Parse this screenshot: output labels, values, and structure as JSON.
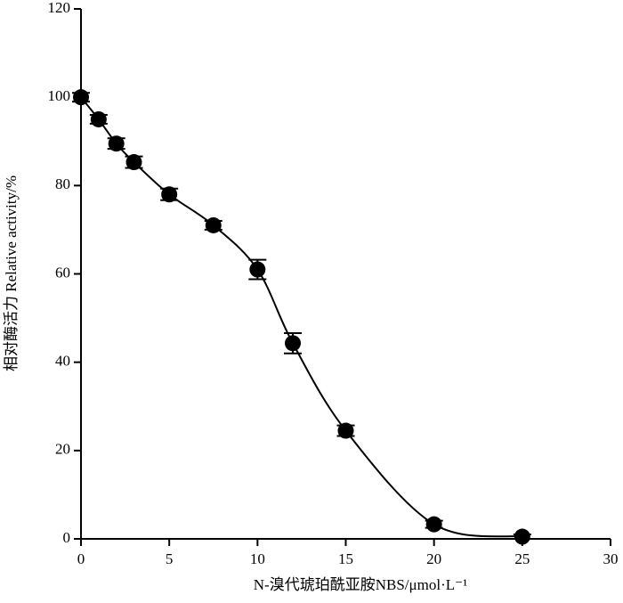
{
  "chart_data": {
    "type": "line",
    "x_label": "N-溴代琥珀酰亚胺NBS/μmol·L⁻¹",
    "y_label": "相对酶活力 Relative activity/%",
    "x": [
      0,
      1,
      2,
      3,
      5,
      7.5,
      10,
      12,
      15,
      20,
      25
    ],
    "series": [
      {
        "color": "#000000",
        "values": [
          100,
          95,
          89.5,
          85.3,
          78,
          71,
          61,
          44.3,
          24.5,
          3.3,
          0.5
        ],
        "errors": [
          1,
          1,
          1.2,
          1.3,
          1.3,
          1,
          2.2,
          2.3,
          1.2,
          0.8,
          0.5
        ]
      }
    ],
    "xlim": [
      0,
      30
    ],
    "xticks": [
      0,
      5,
      10,
      15,
      20,
      25,
      30
    ],
    "ylim": [
      0,
      120
    ],
    "yticks": [
      0,
      20,
      40,
      60,
      80,
      100,
      120
    ],
    "grid": false
  }
}
